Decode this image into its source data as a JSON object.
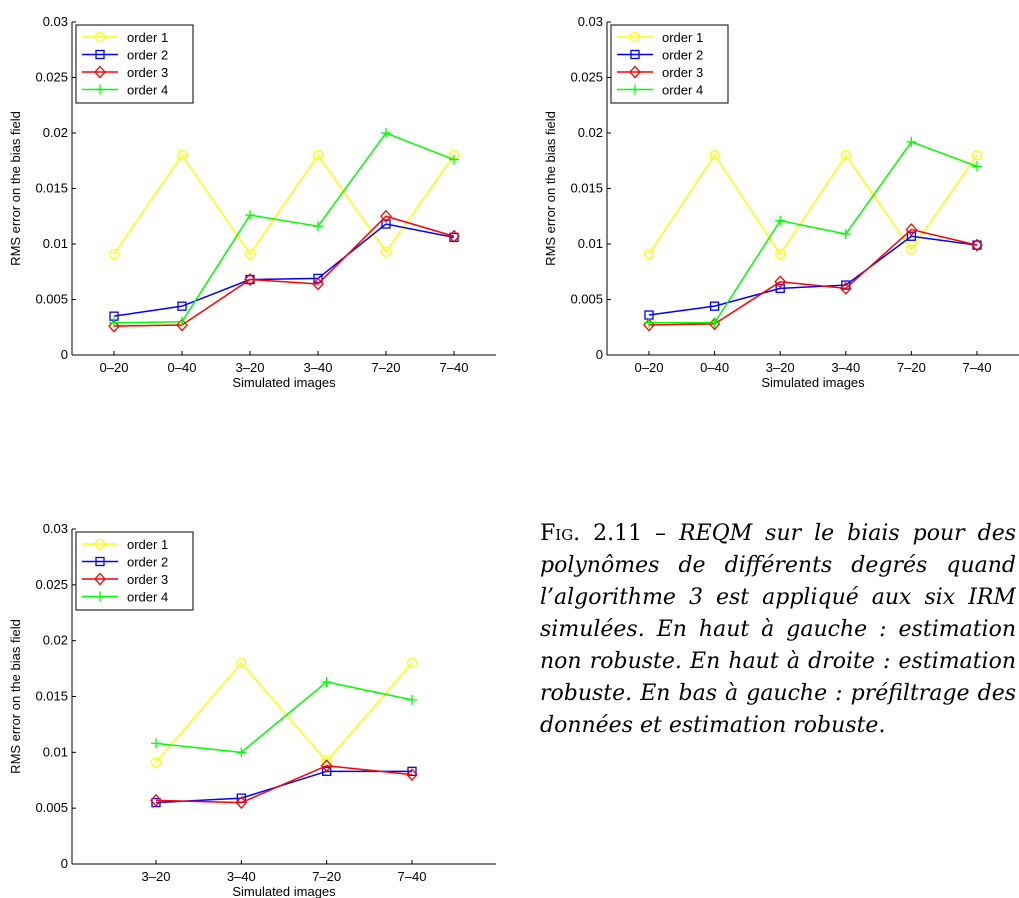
{
  "chart_data": [
    {
      "type": "line",
      "categories": [
        "0–20",
        "0–40",
        "3–20",
        "3–40",
        "7–20",
        "7–40"
      ],
      "xlabel": "Simulated images",
      "ylabel": "RMS error on the bias field",
      "ylim": [
        0,
        0.03
      ],
      "yticks": [
        "0",
        "0.005",
        "0.01",
        "0.015",
        "0.02",
        "0.025",
        "0.03"
      ],
      "legend_position": "top-left",
      "grid": false,
      "series": [
        {
          "name": "order 1",
          "color": "#ffff00",
          "marker": "circle",
          "values": [
            0.0091,
            0.018,
            0.0091,
            0.018,
            0.0093,
            0.018
          ]
        },
        {
          "name": "order 2",
          "color": "#0000ff",
          "marker": "square",
          "values": [
            0.0035,
            0.0044,
            0.0068,
            0.0069,
            0.0118,
            0.0106
          ]
        },
        {
          "name": "order 3",
          "color": "#ff0000",
          "marker": "diamond",
          "values": [
            0.0026,
            0.0027,
            0.0068,
            0.0064,
            0.0125,
            0.0107
          ]
        },
        {
          "name": "order 4",
          "color": "#00ff00",
          "marker": "plus",
          "values": [
            0.0029,
            0.003,
            0.0126,
            0.0116,
            0.02,
            0.0176
          ]
        }
      ]
    },
    {
      "type": "line",
      "categories": [
        "0–20",
        "0–40",
        "3–20",
        "3–40",
        "7–20",
        "7–40"
      ],
      "xlabel": "Simulated images",
      "ylabel": "RMS error on the bias field",
      "ylim": [
        0,
        0.03
      ],
      "yticks": [
        "0",
        "0.005",
        "0.01",
        "0.015",
        "0.02",
        "0.025",
        "0.03"
      ],
      "legend_position": "top-left",
      "grid": false,
      "series": [
        {
          "name": "order 1",
          "color": "#ffff00",
          "marker": "circle",
          "values": [
            0.0091,
            0.018,
            0.0091,
            0.018,
            0.0095,
            0.018
          ]
        },
        {
          "name": "order 2",
          "color": "#0000ff",
          "marker": "square",
          "values": [
            0.0036,
            0.0044,
            0.006,
            0.0063,
            0.0107,
            0.0099
          ]
        },
        {
          "name": "order 3",
          "color": "#ff0000",
          "marker": "diamond",
          "values": [
            0.0027,
            0.0028,
            0.0066,
            0.006,
            0.0113,
            0.0099
          ]
        },
        {
          "name": "order 4",
          "color": "#00ff00",
          "marker": "plus",
          "values": [
            0.0029,
            0.0029,
            0.0121,
            0.0109,
            0.0192,
            0.017
          ]
        }
      ]
    },
    {
      "type": "line",
      "categories": [
        "3–20",
        "3–40",
        "7–20",
        "7–40"
      ],
      "xlabel": "Simulated images",
      "ylabel": "RMS error on the bias field",
      "ylim": [
        0,
        0.03
      ],
      "yticks": [
        "0",
        "0.005",
        "0.01",
        "0.015",
        "0.02",
        "0.025",
        "0.03"
      ],
      "legend_position": "top-left",
      "grid": false,
      "series": [
        {
          "name": "order 1",
          "color": "#ffff00",
          "marker": "circle",
          "values": [
            0.0091,
            0.018,
            0.0092,
            0.018
          ]
        },
        {
          "name": "order 2",
          "color": "#0000ff",
          "marker": "square",
          "values": [
            0.0055,
            0.0059,
            0.0083,
            0.0083
          ]
        },
        {
          "name": "order 3",
          "color": "#ff0000",
          "marker": "diamond",
          "values": [
            0.0057,
            0.0055,
            0.0088,
            0.008
          ]
        },
        {
          "name": "order 4",
          "color": "#00ff00",
          "marker": "plus",
          "values": [
            0.0108,
            0.01,
            0.0163,
            0.0147
          ]
        }
      ]
    }
  ],
  "caption": {
    "label": "Fig. 2.11 –",
    "text": "REQM sur le biais pour des polynômes de différents degrés quand l’algorithme 3 est appliqué aux six IRM simulées. En haut à gauche : estimation non robuste. En haut à droite : estimation robuste. En bas à gauche : préfiltrage des données et estimation robuste."
  }
}
